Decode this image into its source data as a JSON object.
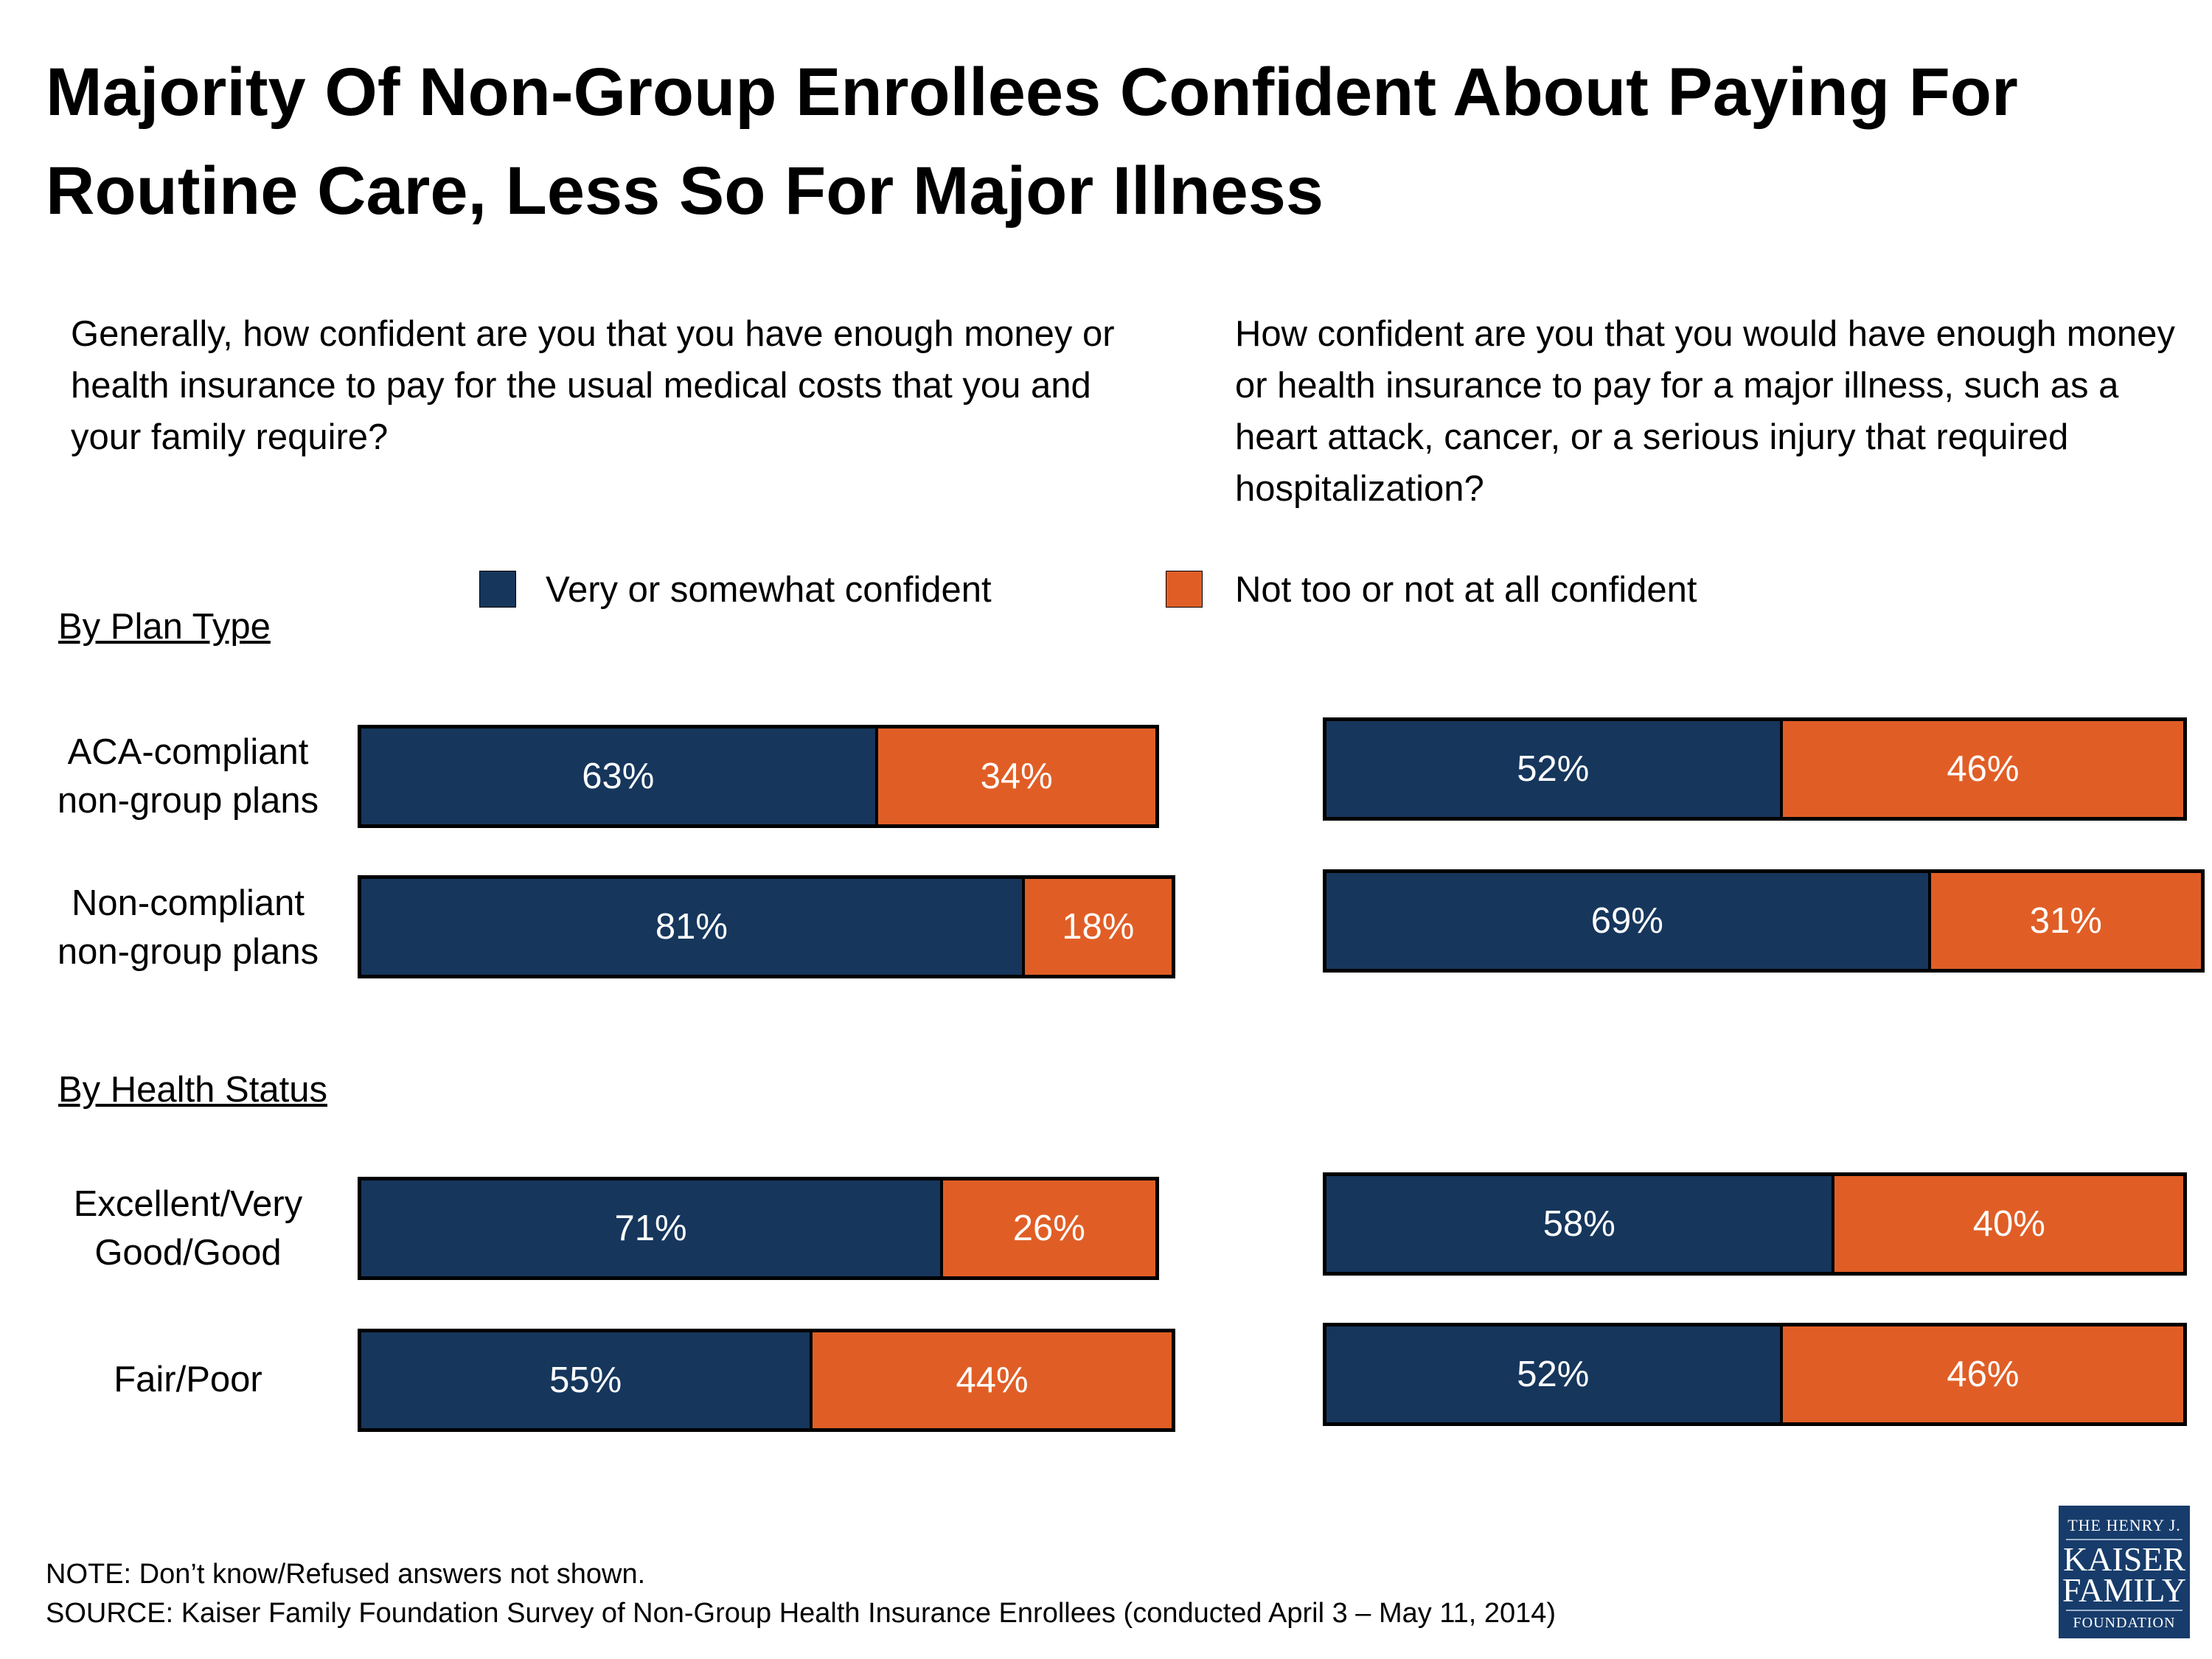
{
  "title": "Majority Of Non-Group Enrollees Confident About Paying For Routine Care, Less So For Major Illness",
  "questions": {
    "left": "Generally, how confident are you that you have enough money or health insurance to pay for the usual medical costs that you and your family require?",
    "right": "How confident are you that you would have enough money or health insurance to pay for a major illness, such as a heart attack, cancer, or a serious injury that required hospitalization?"
  },
  "sections": {
    "plan_type": "By Plan Type",
    "health_status": "By Health Status"
  },
  "chart_data": {
    "type": "bar",
    "orientation": "horizontal-stacked",
    "legend": [
      "Very or somewhat confident",
      "Not too or not at all confident"
    ],
    "legend_position": "top",
    "colors": {
      "confident": "#16365c",
      "not_confident": "#e05e26"
    },
    "categories": [
      "ACA-compliant non-group plans",
      "Non-compliant non-group plans",
      "Excellent/Very Good/Good",
      "Fair/Poor"
    ],
    "panels": [
      {
        "name": "Usual medical costs",
        "series": [
          {
            "name": "Very or somewhat confident",
            "values": [
              63,
              81,
              71,
              55
            ]
          },
          {
            "name": "Not too or not at all confident",
            "values": [
              34,
              18,
              26,
              44
            ]
          }
        ]
      },
      {
        "name": "Major illness",
        "series": [
          {
            "name": "Very or somewhat confident",
            "values": [
              52,
              69,
              58,
              52
            ]
          },
          {
            "name": "Not too or not at all confident",
            "values": [
              46,
              31,
              40,
              46
            ]
          }
        ]
      }
    ]
  },
  "category_labels": [
    [
      "ACA-compliant",
      "non-group plans"
    ],
    [
      "Non-compliant",
      "non-group plans"
    ],
    [
      "Excellent/Very",
      "Good/Good"
    ],
    [
      "Fair/Poor"
    ]
  ],
  "footer": {
    "note": "NOTE: Don’t know/Refused answers not shown.",
    "source": "SOURCE: Kaiser Family Foundation Survey of Non-Group Health Insurance Enrollees (conducted April 3 – May 11, 2014)"
  },
  "logo": {
    "line1": "THE HENRY J.",
    "line2": "KAISER",
    "line3": "FAMILY",
    "line4": "FOUNDATION"
  }
}
